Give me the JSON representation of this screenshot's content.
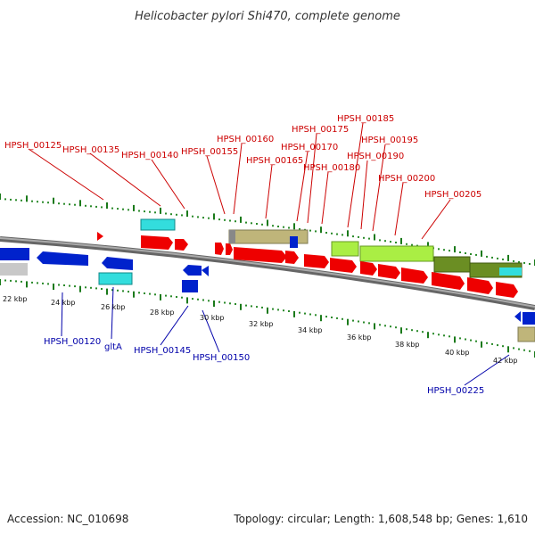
{
  "header": {
    "title": "Helicobacter pylori Shi470, complete genome"
  },
  "footer": {
    "accession": "Accession: NC_010698",
    "summary": "Topology: circular; Length: 1,608,548 bp; Genes: 1,610"
  },
  "colors": {
    "backbone": "#888888",
    "tick_green": "#1b7a1b",
    "tick_dots": "#2a8a2a",
    "label_red": "#cc0000",
    "label_blue": "#0000aa",
    "gene_red": "#ee0000",
    "gene_blue": "#0022cc",
    "gene_cyan": "#33dddd",
    "gene_grey": "#c8c8c8",
    "gene_tan": "#bfb57a",
    "gene_lime": "#aaee44",
    "gene_olive": "#6b8e23"
  },
  "scale": {
    "unit": "kbp",
    "ticks": [
      "22 kbp",
      "24 kbp",
      "26 kbp",
      "28 kbp",
      "30 kbp",
      "32 kbp",
      "34 kbp",
      "36 kbp",
      "38 kbp",
      "40 kbp",
      "42 kbp"
    ]
  },
  "forward_labels": [
    "HPSH_00125",
    "HPSH_00135",
    "HPSH_00140",
    "HPSH_00155",
    "HPSH_00160",
    "HPSH_00165",
    "HPSH_00170",
    "HPSH_00175",
    "HPSH_00180",
    "HPSH_00185",
    "HPSH_00190",
    "HPSH_00195",
    "HPSH_00200",
    "HPSH_00205"
  ],
  "reverse_labels": [
    "HPSH_00120",
    "gltA",
    "HPSH_00145",
    "HPSH_00150",
    "HPSH_00225"
  ]
}
